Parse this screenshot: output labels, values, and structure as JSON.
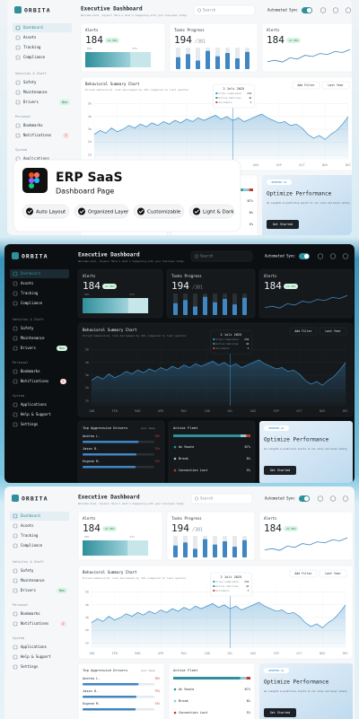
{
  "overlay": {
    "title": "ERP SaaS",
    "subtitle": "Dashboard Page",
    "features": [
      "Auto Layout",
      "Organized Layer",
      "Customizable",
      "Light & Dark"
    ]
  },
  "dashboard": {
    "logo": "ORBITA",
    "nav_main": [
      "Dashboard",
      "Assets",
      "Tracking",
      "Compliance"
    ],
    "sections": [
      {
        "title": "Vehicles & Staff",
        "items": [
          "Safety",
          "Maintenance",
          "Drivers"
        ]
      },
      {
        "title": "Personal",
        "items": [
          "Bookmarks",
          "Notifications"
        ]
      },
      {
        "title": "System",
        "items": [
          "Applications",
          "Help & Support",
          "Settings"
        ]
      }
    ],
    "drivers_badge": "New",
    "notifications_badge": "2",
    "header": {
      "title": "Executive Dashboard",
      "subtitle": "Welcome back, Jayson! Here's what's happening with your business today.",
      "search": "Search",
      "sync": "Automated Sync"
    },
    "alerts_card": {
      "title": "Alerts",
      "value": 184,
      "change": "+5.36%",
      "progress": {
        "values": [
          60,
          27
        ],
        "value_labels": [
          "60%",
          "27%"
        ]
      }
    },
    "tasks_card": {
      "title": "Tasks Progress",
      "value": 194,
      "total": "/381",
      "bars": [
        55,
        70,
        40,
        85,
        60,
        75,
        50,
        80
      ]
    },
    "trend_card": {
      "title": "Alerts",
      "value": 184,
      "change": "+5.36%",
      "sparkline": [
        30,
        35,
        28,
        45,
        40,
        55,
        50,
        62,
        58,
        70,
        66,
        78
      ]
    },
    "chart": {
      "type": "line",
      "title": "Behavioral Summary Chart",
      "subtitle": "Drived behavioral risk decreased by 32% compared to last quarter",
      "filter": "Add Filter",
      "period": "Last Year",
      "tooltip": {
        "date": "2 Juli 2025",
        "rows": [
          "Trips Completed",
          "Active Vehicles",
          "Incidents"
        ],
        "values": [
          234,
          42,
          3
        ]
      },
      "x": [
        0,
        0.25,
        0.5,
        0.75,
        1,
        1.25,
        1.5,
        1.75,
        2,
        2.25,
        2.5,
        2.75,
        3,
        3.25,
        3.5,
        3.75,
        4,
        4.25,
        4.5,
        4.75,
        5,
        5.25,
        5.5,
        5.75,
        6,
        6.25,
        6.5,
        6.75,
        7,
        7.25,
        7.5,
        7.75,
        8,
        8.25,
        8.5,
        8.75,
        9,
        9.25,
        9.5,
        9.75,
        10,
        10.25,
        10.5,
        10.75,
        11
      ],
      "values": [
        2.6,
        2.9,
        2.7,
        3.1,
        2.8,
        3.0,
        3.3,
        3.1,
        3.4,
        3.2,
        3.5,
        3.3,
        3.6,
        3.4,
        3.7,
        3.5,
        3.8,
        3.6,
        3.9,
        3.7,
        3.9,
        4.1,
        3.8,
        4.0,
        3.7,
        3.9,
        3.6,
        3.8,
        4.0,
        4.2,
        3.9,
        3.7,
        3.5,
        3.6,
        3.3,
        3.4,
        3.1,
        2.6,
        2.3,
        2.5,
        2.2,
        2.6,
        2.9,
        3.4,
        4.0
      ],
      "xlim": [
        0,
        11
      ],
      "ylim": [
        0.6,
        5.4
      ],
      "xticks": [
        {
          "value": 0,
          "label": "JAN"
        },
        {
          "value": 1,
          "label": "FEB"
        },
        {
          "value": 2,
          "label": "MAR"
        },
        {
          "value": 3,
          "label": "APR"
        },
        {
          "value": 4,
          "label": "MAY"
        },
        {
          "value": 5,
          "label": "JUN"
        },
        {
          "value": 6,
          "label": "JUL"
        },
        {
          "value": 7,
          "label": "AUG"
        },
        {
          "value": 8,
          "label": "SEP"
        },
        {
          "value": 9,
          "label": "OCT"
        },
        {
          "value": 10,
          "label": "NOV"
        },
        {
          "value": 11,
          "label": "DEC"
        }
      ],
      "yticks": [
        {
          "value": 1,
          "label": "1m"
        },
        {
          "value": 2,
          "label": "2m"
        },
        {
          "value": 3,
          "label": "3m"
        },
        {
          "value": 4,
          "label": "4m"
        },
        {
          "value": 5,
          "label": "5m"
        }
      ],
      "grid": true
    },
    "drivers": {
      "title": "Top Aggressive Drivers",
      "filter": "Last Week",
      "names": [
        "Andrew L.",
        "Jason D.",
        "Eugene M."
      ],
      "values": [
        78,
        75,
        74
      ],
      "value_labels": [
        "78%",
        "75%",
        "74%"
      ]
    },
    "fleet": {
      "title": "Active Fleet",
      "categories": [
        "On Route",
        "Break",
        "Connection Lost"
      ],
      "values": [
        87,
        8,
        5
      ],
      "value_labels": [
        "87%",
        "8%",
        "5%"
      ]
    },
    "promo": {
      "tag": "NEWFEED AI",
      "title": "Optimize Performance",
      "text": "AI insights & predictive alerts to cut costs and boost safety.",
      "button": "Get Started"
    }
  }
}
